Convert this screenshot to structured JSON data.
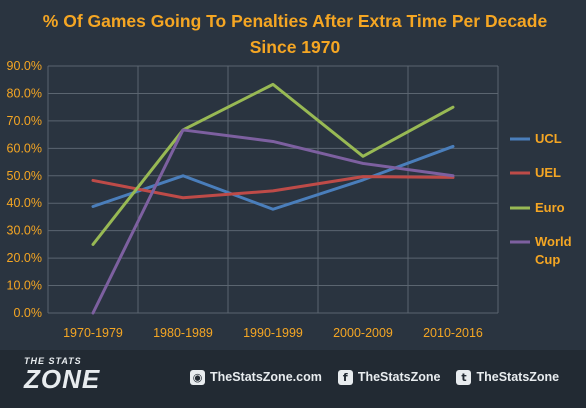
{
  "chart_data": {
    "type": "line",
    "title": "% Of Games Going To Penalties After Extra Time Per Decade Since 1970",
    "categories": [
      "1970-1979",
      "1980-1989",
      "1990-1999",
      "2000-2009",
      "2010-2016"
    ],
    "y_tick_labels": [
      "0.0%",
      "10.0%",
      "20.0%",
      "30.0%",
      "40.0%",
      "50.0%",
      "60.0%",
      "70.0%",
      "80.0%",
      "90.0%"
    ],
    "ylim": [
      0,
      90
    ],
    "grid": true,
    "legend_position": "right",
    "series": [
      {
        "name": "UCL",
        "color": "#4a7ebb",
        "values": [
          38.8,
          50.0,
          37.8,
          48.5,
          60.7
        ]
      },
      {
        "name": "UEL",
        "color": "#be4b48",
        "values": [
          48.3,
          42.0,
          44.5,
          49.7,
          49.4
        ]
      },
      {
        "name": "Euro",
        "color": "#98b954",
        "values": [
          25.0,
          66.7,
          83.3,
          57.1,
          75.0
        ]
      },
      {
        "name": "World Cup",
        "color": "#7d60a0",
        "values": [
          0.0,
          66.7,
          62.5,
          54.5,
          50.0
        ]
      }
    ]
  },
  "footer": {
    "brand_top": "THE STATS",
    "brand_main": "ZONE",
    "socials": [
      {
        "icon": "globe-icon",
        "glyph": "◉",
        "text": "TheStatsZone.com"
      },
      {
        "icon": "facebook-icon",
        "glyph": "f",
        "text": "TheStatsZone"
      },
      {
        "icon": "twitter-icon",
        "glyph": "t",
        "text": "TheStatsZone"
      }
    ]
  }
}
